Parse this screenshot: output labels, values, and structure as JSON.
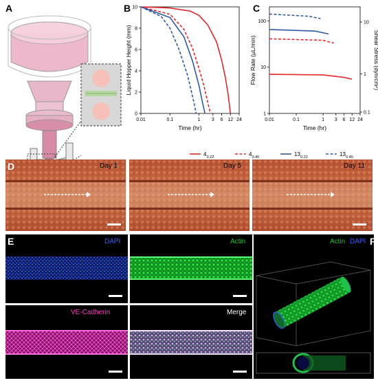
{
  "panels": {
    "A": "A",
    "B": "B",
    "C": "C",
    "D": "D",
    "E": "E",
    "F": "F"
  },
  "chart_data": [
    {
      "type": "line",
      "panel": "B",
      "xlabel": "Time (hr)",
      "ylabel": "Liquid Hopper Height (mm)",
      "xscale": "log",
      "xlim": [
        0.01,
        24
      ],
      "ylim": [
        0,
        10
      ],
      "xticks": [
        "0.01",
        "0.1",
        "1",
        "3",
        "6",
        "12",
        "24"
      ],
      "yticks": [
        "0",
        "2",
        "4",
        "6",
        "8",
        "10"
      ],
      "series": [
        {
          "name": "4_0.22",
          "color": "#e8262a",
          "dash": false,
          "x": [
            0.01,
            0.1,
            0.5,
            1,
            2,
            4,
            6,
            8,
            10,
            12
          ],
          "y": [
            10,
            9.9,
            9.6,
            9.2,
            8.3,
            6.7,
            5.0,
            3.4,
            1.8,
            0
          ]
        },
        {
          "name": "4_0.45",
          "color": "#e8262a",
          "dash": true,
          "x": [
            0.01,
            0.1,
            0.3,
            0.6,
            1,
            1.5,
            2,
            2.5
          ],
          "y": [
            10,
            9.3,
            7.9,
            6.1,
            4.2,
            2.5,
            1.0,
            0
          ]
        },
        {
          "name": "13_0.22",
          "color": "#2a5aa8",
          "dash": false,
          "x": [
            0.01,
            0.1,
            0.3,
            0.6,
            1,
            1.3,
            1.6
          ],
          "y": [
            10,
            9.0,
            7.2,
            4.9,
            2.6,
            1.1,
            0
          ]
        },
        {
          "name": "13_0.45",
          "color": "#2a5aa8",
          "dash": true,
          "x": [
            0.01,
            0.05,
            0.1,
            0.2,
            0.4,
            0.6,
            0.8
          ],
          "y": [
            10,
            9.1,
            8.0,
            6.1,
            3.6,
            1.6,
            0
          ]
        }
      ],
      "legend": {
        "position": "bottom",
        "entries": [
          {
            "base": "4",
            "sub": "0.22"
          },
          {
            "base": "4",
            "sub": "0.45"
          },
          {
            "base": "13",
            "sub": "0.22"
          },
          {
            "base": "13",
            "sub": "0.45"
          }
        ]
      }
    },
    {
      "type": "line",
      "panel": "C",
      "xlabel": "Time (hr)",
      "ylabel": "Flow Rate (μL/min)",
      "y2label": "Shear Stress (dyn/cm²)",
      "xscale": "log",
      "yscale": "log",
      "xlim": [
        0.01,
        24
      ],
      "ylim": [
        1,
        200
      ],
      "xticks": [
        "0.01",
        "0.1",
        "1",
        "3",
        "6",
        "12",
        "24"
      ],
      "yticks": [
        "1",
        "10",
        "100"
      ],
      "y2ticks": [
        "0.1",
        "1",
        "10"
      ],
      "series": [
        {
          "name": "4_0.22",
          "color": "#e8262a",
          "dash": false,
          "x": [
            0.01,
            1,
            6,
            12
          ],
          "y": [
            7,
            6.8,
            6.0,
            5.5
          ]
        },
        {
          "name": "4_0.45",
          "color": "#e8262a",
          "dash": true,
          "x": [
            0.01,
            1,
            2.5
          ],
          "y": [
            41,
            38,
            33
          ]
        },
        {
          "name": "13_0.22",
          "color": "#2a5aa8",
          "dash": false,
          "x": [
            0.01,
            0.5,
            1.6
          ],
          "y": [
            65,
            60,
            52
          ]
        },
        {
          "name": "13_0.45",
          "color": "#2a5aa8",
          "dash": true,
          "x": [
            0.01,
            0.3,
            0.8
          ],
          "y": [
            140,
            125,
            112
          ]
        }
      ]
    }
  ],
  "D": {
    "images": [
      {
        "label": "Day 1"
      },
      {
        "label": "Day 5"
      },
      {
        "label": "Day 11"
      }
    ]
  },
  "E": {
    "images": [
      {
        "label": "DAPI",
        "color": "#3a5bff"
      },
      {
        "label": "Actin",
        "color": "#19c22c"
      },
      {
        "label": "VE-Cadherin",
        "color": "#ff3fc3"
      },
      {
        "label": "Merge",
        "color": "#ffffff"
      }
    ]
  },
  "F": {
    "label_actin": "Actin",
    "label_dapi": "DAPI",
    "color_actin": "#19c22c",
    "color_dapi": "#3a5bff"
  }
}
